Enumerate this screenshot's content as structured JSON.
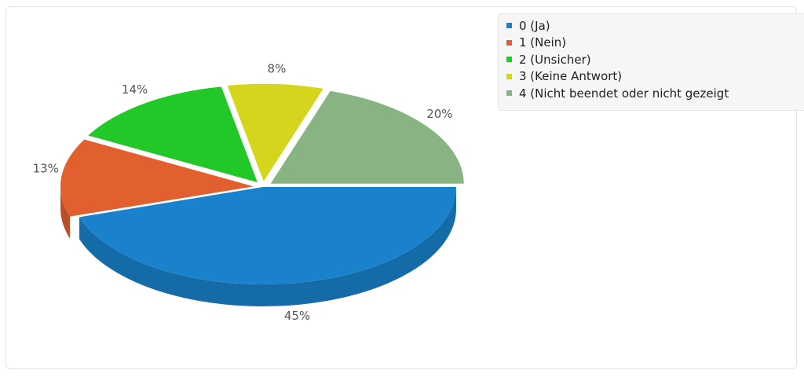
{
  "chart_data": {
    "type": "pie",
    "categories": [
      "0 (Ja)",
      "1 (Nein)",
      "2 (Unsicher)",
      "3 (Keine Antwort)",
      "4 (Nicht beendet oder nicht gezeigt"
    ],
    "values": [
      45,
      13,
      14,
      8,
      20
    ],
    "value_labels": [
      "45%",
      "13%",
      "14%",
      "8%",
      "20%"
    ],
    "colors": [
      "#1a82cd",
      "#e25f2f",
      "#22c828",
      "#d5d51e",
      "#88b383"
    ]
  }
}
